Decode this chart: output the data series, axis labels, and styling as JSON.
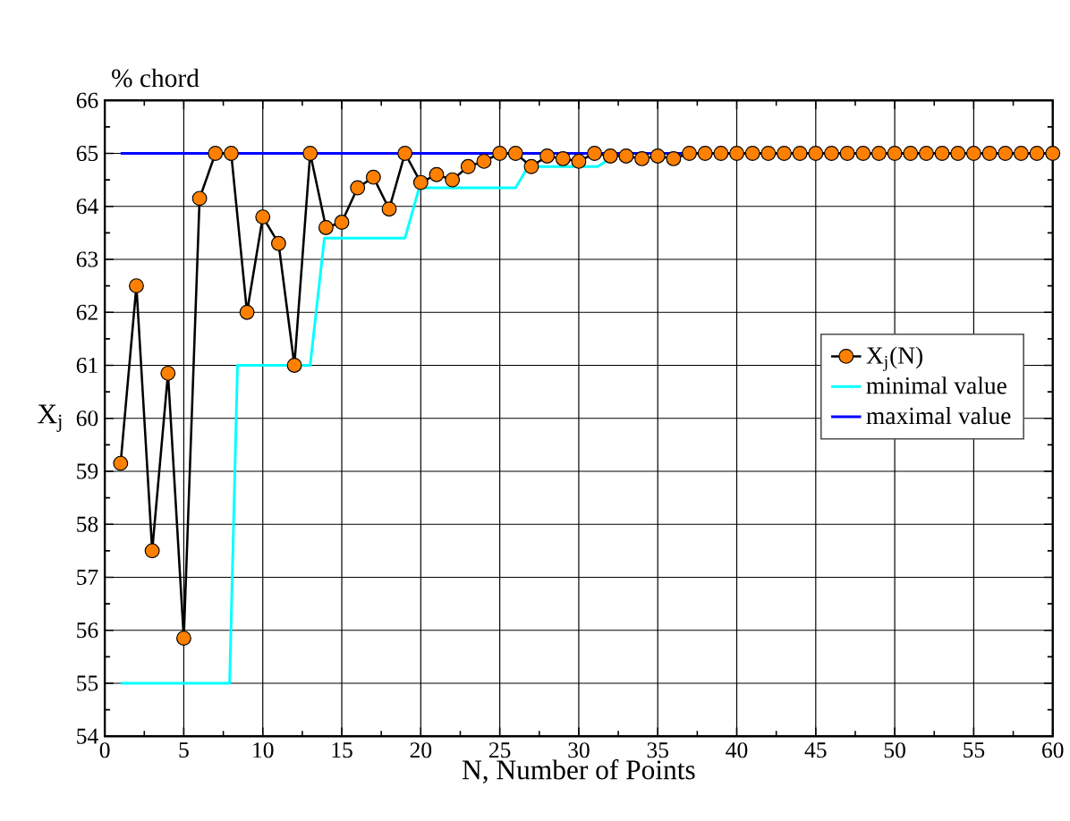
{
  "chart_data": {
    "type": "line",
    "title": "% chord",
    "xlabel": "N, Number of Points",
    "ylabel": "X$_{j}$",
    "xlim": [
      0,
      60
    ],
    "ylim": [
      54,
      66
    ],
    "xticks": [
      0,
      5,
      10,
      15,
      20,
      25,
      30,
      35,
      40,
      45,
      50,
      55,
      60
    ],
    "yticks": [
      54,
      55,
      56,
      57,
      58,
      59,
      60,
      61,
      62,
      63,
      64,
      65,
      66
    ],
    "grid": true,
    "legend": "right",
    "series": [
      {
        "name": "X$_{j}$(N)",
        "color": "#ff8000",
        "marker": "circle",
        "x": [
          1,
          2,
          3,
          4,
          5,
          6,
          7,
          8,
          9,
          10,
          11,
          12,
          13,
          14,
          15,
          16,
          17,
          18,
          19,
          20,
          21,
          22,
          23,
          24,
          25,
          26,
          27,
          28,
          29,
          30,
          31,
          32,
          33,
          34,
          35,
          36,
          37,
          38,
          39,
          40,
          41,
          42,
          43,
          44,
          45,
          46,
          47,
          48,
          49,
          50,
          51,
          52,
          53,
          54,
          55,
          56,
          57,
          58,
          59,
          60
        ],
        "values": [
          59.15,
          62.5,
          57.5,
          60.85,
          55.85,
          64.15,
          65,
          65,
          62.0,
          63.8,
          63.3,
          61.0,
          65,
          63.6,
          63.7,
          64.35,
          64.55,
          63.95,
          65,
          64.45,
          64.6,
          64.5,
          64.75,
          64.85,
          65,
          65,
          64.75,
          64.95,
          64.9,
          64.85,
          65,
          64.95,
          64.95,
          64.9,
          64.95,
          64.9,
          65,
          65,
          65,
          65,
          65,
          65,
          65,
          65,
          65,
          65,
          65,
          65,
          65,
          65,
          65,
          65,
          65,
          65,
          65,
          65,
          65,
          65,
          65,
          65
        ]
      },
      {
        "name": "minimal value",
        "color": "#00ffff",
        "marker": "none",
        "x": [
          1,
          7.9,
          8.4,
          13,
          13.9,
          19,
          19.9,
          26,
          26.8,
          31.2,
          32.5,
          60
        ],
        "values": [
          55,
          55,
          61,
          61,
          63.4,
          63.4,
          64.35,
          64.35,
          64.75,
          64.75,
          65,
          65
        ]
      },
      {
        "name": "maximal value",
        "color": "#0000ff",
        "marker": "none",
        "x": [
          1,
          60
        ],
        "values": [
          65,
          65
        ]
      }
    ]
  }
}
